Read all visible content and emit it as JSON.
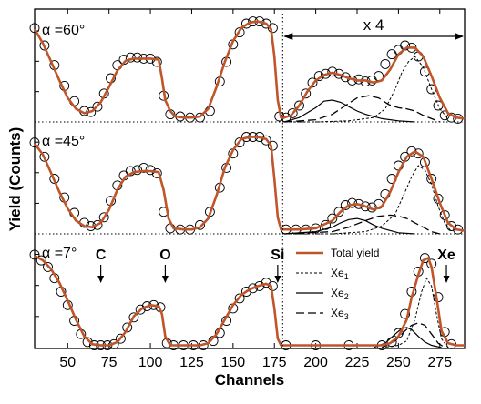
{
  "chart_data": {
    "type": "line",
    "xlabel": "Channels",
    "ylabel": "Yield (Counts)",
    "xlim": [
      30,
      290
    ],
    "x_ticks": [
      "50",
      "75",
      "100",
      "125",
      "150",
      "175",
      "200",
      "225",
      "250",
      "275"
    ],
    "magnification_label": "x 4",
    "magnification_from_channel": 180,
    "element_markers": [
      {
        "label": "C",
        "channel": 70
      },
      {
        "label": "O",
        "channel": 109
      },
      {
        "label": "Si",
        "channel": 177
      },
      {
        "label": "Xe",
        "channel": 279
      }
    ],
    "legend": {
      "title": "",
      "entries": [
        {
          "label": "Total yield",
          "style": "solid-thick",
          "color": "#c0552a"
        },
        {
          "label": "Xe",
          "sub": "1",
          "style": "short-dash",
          "color": "#000000"
        },
        {
          "label": "Xe",
          "sub": "2",
          "style": "solid",
          "color": "#000000"
        },
        {
          "label": "Xe",
          "sub": "3",
          "style": "long-dash",
          "color": "#000000"
        }
      ]
    },
    "colors": {
      "total_yield": "#c0552a",
      "experimental_points": "#000000",
      "components": "#000000"
    },
    "panels": [
      {
        "label": "α =60°",
        "total_yield": {
          "x": [
            30,
            35,
            40,
            45,
            50,
            55,
            60,
            65,
            70,
            75,
            80,
            85,
            90,
            95,
            100,
            105,
            107,
            109,
            112,
            115,
            120,
            125,
            130,
            135,
            140,
            145,
            150,
            155,
            160,
            165,
            170,
            173,
            175,
            177,
            179,
            181,
            185,
            190,
            195,
            200,
            205,
            210,
            215,
            220,
            225,
            230,
            235,
            240,
            245,
            250,
            255,
            260,
            265,
            270,
            275,
            280,
            285,
            290
          ],
          "y": [
            0.85,
            0.72,
            0.55,
            0.38,
            0.22,
            0.12,
            0.08,
            0.1,
            0.18,
            0.32,
            0.47,
            0.56,
            0.58,
            0.58,
            0.58,
            0.57,
            0.4,
            0.2,
            0.1,
            0.05,
            0.04,
            0.04,
            0.05,
            0.12,
            0.32,
            0.55,
            0.74,
            0.86,
            0.91,
            0.92,
            0.9,
            0.85,
            0.6,
            0.2,
            0.04,
            0.04,
            0.06,
            0.15,
            0.28,
            0.38,
            0.43,
            0.45,
            0.43,
            0.4,
            0.38,
            0.38,
            0.36,
            0.38,
            0.48,
            0.62,
            0.68,
            0.68,
            0.6,
            0.42,
            0.22,
            0.08,
            0.04,
            0.03
          ]
        },
        "points": {
          "x": [
            30,
            36,
            42,
            48,
            54,
            60,
            64,
            68,
            72,
            76,
            80,
            84,
            88,
            92,
            96,
            100,
            104,
            108,
            112,
            118,
            124,
            130,
            136,
            142,
            146,
            150,
            154,
            158,
            162,
            166,
            170,
            174,
            178,
            182,
            186,
            190,
            194,
            198,
            202,
            206,
            210,
            214,
            218,
            222,
            226,
            230,
            234,
            238,
            242,
            246,
            250,
            254,
            258,
            262,
            266,
            270,
            274,
            278,
            282,
            286
          ],
          "y": [
            0.86,
            0.7,
            0.52,
            0.33,
            0.19,
            0.1,
            0.09,
            0.14,
            0.26,
            0.4,
            0.52,
            0.57,
            0.59,
            0.59,
            0.58,
            0.58,
            0.55,
            0.24,
            0.07,
            0.05,
            0.04,
            0.04,
            0.1,
            0.37,
            0.55,
            0.71,
            0.82,
            0.9,
            0.92,
            0.92,
            0.9,
            0.86,
            0.05,
            0.04,
            0.08,
            0.15,
            0.26,
            0.36,
            0.42,
            0.44,
            0.46,
            0.44,
            0.41,
            0.38,
            0.39,
            0.37,
            0.38,
            0.42,
            0.53,
            0.62,
            0.66,
            0.7,
            0.68,
            0.6,
            0.46,
            0.3,
            0.15,
            0.06,
            0.04,
            0.03
          ]
        },
        "components": {
          "Xe1": {
            "x": [
              181,
              200,
              220,
              235,
              242,
              248,
              252,
              256,
              260,
              265,
              270,
              275,
              280
            ],
            "y": [
              0.0,
              0.0,
              0.01,
              0.04,
              0.12,
              0.3,
              0.45,
              0.55,
              0.6,
              0.5,
              0.3,
              0.12,
              0.03
            ]
          },
          "Xe2": {
            "x": [
              181,
              190,
              200,
              205,
              210,
              215,
              220,
              225,
              230,
              240,
              250,
              260
            ],
            "y": [
              0.0,
              0.04,
              0.13,
              0.19,
              0.2,
              0.18,
              0.14,
              0.1,
              0.07,
              0.03,
              0.01,
              0.0
            ]
          },
          "Xe3": {
            "x": [
              181,
              200,
              210,
              220,
              225,
              232,
              238,
              244,
              250,
              255,
              260,
              265,
              270,
              275
            ],
            "y": [
              0.0,
              0.02,
              0.07,
              0.17,
              0.22,
              0.24,
              0.22,
              0.16,
              0.13,
              0.12,
              0.1,
              0.06,
              0.03,
              0.0
            ]
          }
        }
      },
      {
        "label": "α =45°",
        "total_yield": {
          "x": [
            30,
            35,
            40,
            45,
            50,
            55,
            60,
            65,
            70,
            75,
            80,
            85,
            90,
            95,
            100,
            105,
            108,
            111,
            114,
            120,
            125,
            130,
            135,
            140,
            145,
            150,
            155,
            160,
            165,
            170,
            173,
            175,
            177,
            179,
            181,
            190,
            200,
            210,
            215,
            220,
            225,
            230,
            235,
            240,
            245,
            250,
            255,
            260,
            265,
            270,
            275,
            280,
            285,
            290
          ],
          "y": [
            0.82,
            0.72,
            0.55,
            0.38,
            0.23,
            0.12,
            0.07,
            0.06,
            0.1,
            0.22,
            0.4,
            0.52,
            0.56,
            0.57,
            0.57,
            0.56,
            0.4,
            0.14,
            0.05,
            0.04,
            0.04,
            0.06,
            0.14,
            0.35,
            0.6,
            0.76,
            0.86,
            0.88,
            0.88,
            0.86,
            0.8,
            0.5,
            0.15,
            0.04,
            0.04,
            0.04,
            0.05,
            0.12,
            0.2,
            0.26,
            0.27,
            0.25,
            0.22,
            0.25,
            0.38,
            0.56,
            0.7,
            0.75,
            0.7,
            0.5,
            0.28,
            0.1,
            0.04,
            0.03
          ]
        },
        "points": {
          "x": [
            30,
            36,
            42,
            48,
            54,
            60,
            64,
            68,
            72,
            76,
            80,
            84,
            88,
            92,
            96,
            100,
            104,
            108,
            112,
            118,
            124,
            130,
            136,
            142,
            146,
            150,
            154,
            158,
            162,
            166,
            170,
            174,
            182,
            188,
            194,
            200,
            206,
            210,
            214,
            218,
            222,
            226,
            230,
            234,
            238,
            242,
            246,
            250,
            254,
            258,
            262,
            266,
            270,
            274,
            278,
            282,
            286
          ],
          "y": [
            0.83,
            0.7,
            0.5,
            0.33,
            0.19,
            0.1,
            0.07,
            0.08,
            0.15,
            0.3,
            0.44,
            0.53,
            0.57,
            0.58,
            0.6,
            0.58,
            0.55,
            0.2,
            0.05,
            0.04,
            0.04,
            0.08,
            0.2,
            0.42,
            0.6,
            0.73,
            0.83,
            0.88,
            0.88,
            0.88,
            0.85,
            0.8,
            0.04,
            0.04,
            0.04,
            0.05,
            0.08,
            0.14,
            0.2,
            0.26,
            0.28,
            0.27,
            0.25,
            0.24,
            0.27,
            0.36,
            0.5,
            0.62,
            0.7,
            0.75,
            0.73,
            0.65,
            0.5,
            0.32,
            0.17,
            0.07,
            0.04
          ]
        },
        "components": {
          "Xe1": {
            "x": [
              181,
              210,
              230,
              240,
              248,
              254,
              258,
              262,
              266,
              270,
              274,
              278,
              282
            ],
            "y": [
              0.0,
              0.0,
              0.02,
              0.07,
              0.18,
              0.38,
              0.52,
              0.62,
              0.58,
              0.45,
              0.25,
              0.1,
              0.02
            ]
          },
          "Xe2": {
            "x": [
              181,
              200,
              210,
              215,
              220,
              225,
              230,
              235,
              240,
              250,
              260
            ],
            "y": [
              0.0,
              0.02,
              0.06,
              0.1,
              0.13,
              0.14,
              0.12,
              0.08,
              0.05,
              0.01,
              0.0
            ]
          },
          "Xe3": {
            "x": [
              181,
              210,
              220,
              230,
              238,
              245,
              250,
              255,
              260,
              265,
              270,
              275
            ],
            "y": [
              0.0,
              0.02,
              0.06,
              0.12,
              0.16,
              0.17,
              0.16,
              0.14,
              0.1,
              0.06,
              0.02,
              0.0
            ]
          }
        }
      },
      {
        "label": "α =7°",
        "total_yield": {
          "x": [
            30,
            35,
            40,
            45,
            50,
            55,
            60,
            65,
            70,
            75,
            80,
            85,
            90,
            95,
            100,
            105,
            107,
            109,
            112,
            115,
            120,
            125,
            130,
            135,
            140,
            145,
            150,
            155,
            160,
            165,
            170,
            173,
            175,
            177,
            179,
            181,
            200,
            220,
            240,
            245,
            250,
            255,
            258,
            262,
            265,
            268,
            270,
            273,
            276,
            280,
            285,
            290
          ],
          "y": [
            0.82,
            0.78,
            0.7,
            0.58,
            0.42,
            0.25,
            0.1,
            0.03,
            0.02,
            0.02,
            0.05,
            0.14,
            0.28,
            0.35,
            0.38,
            0.37,
            0.3,
            0.1,
            0.02,
            0.02,
            0.02,
            0.02,
            0.02,
            0.04,
            0.12,
            0.25,
            0.38,
            0.47,
            0.52,
            0.55,
            0.57,
            0.55,
            0.35,
            0.08,
            0.02,
            0.02,
            0.02,
            0.02,
            0.02,
            0.04,
            0.1,
            0.25,
            0.45,
            0.65,
            0.78,
            0.8,
            0.72,
            0.45,
            0.15,
            0.04,
            0.02,
            0.02
          ]
        },
        "points": {
          "x": [
            30,
            34,
            38,
            42,
            46,
            50,
            54,
            58,
            62,
            66,
            70,
            74,
            78,
            82,
            86,
            90,
            94,
            98,
            102,
            106,
            110,
            114,
            120,
            126,
            132,
            138,
            142,
            146,
            150,
            154,
            158,
            162,
            166,
            170,
            174,
            182,
            200,
            220,
            240,
            246,
            250,
            254,
            258,
            262,
            266,
            270,
            274,
            278,
            282
          ],
          "y": [
            0.83,
            0.78,
            0.72,
            0.62,
            0.5,
            0.38,
            0.24,
            0.12,
            0.05,
            0.02,
            0.02,
            0.02,
            0.03,
            0.08,
            0.18,
            0.27,
            0.34,
            0.37,
            0.38,
            0.36,
            0.04,
            0.02,
            0.02,
            0.02,
            0.02,
            0.06,
            0.13,
            0.24,
            0.35,
            0.44,
            0.5,
            0.53,
            0.55,
            0.58,
            0.55,
            0.02,
            0.02,
            0.02,
            0.02,
            0.05,
            0.13,
            0.3,
            0.5,
            0.68,
            0.8,
            0.75,
            0.45,
            0.14,
            0.03
          ]
        },
        "components": {
          "Xe1": {
            "x": [
              240,
              250,
              255,
              260,
              264,
              267,
              270,
              273,
              276,
              280
            ],
            "y": [
              0.0,
              0.02,
              0.06,
              0.25,
              0.5,
              0.62,
              0.55,
              0.3,
              0.08,
              0.0
            ]
          },
          "Xe2": {
            "x": [
              235,
              242,
              248,
              252,
              255,
              258,
              262,
              266,
              270,
              276
            ],
            "y": [
              0.0,
              0.04,
              0.12,
              0.17,
              0.18,
              0.16,
              0.1,
              0.05,
              0.02,
              0.0
            ]
          },
          "Xe3": {
            "x": [
              240,
              248,
              254,
              258,
              262,
              266,
              270,
              274,
              278
            ],
            "y": [
              0.0,
              0.06,
              0.15,
              0.2,
              0.22,
              0.2,
              0.12,
              0.04,
              0.0
            ]
          }
        }
      }
    ]
  }
}
